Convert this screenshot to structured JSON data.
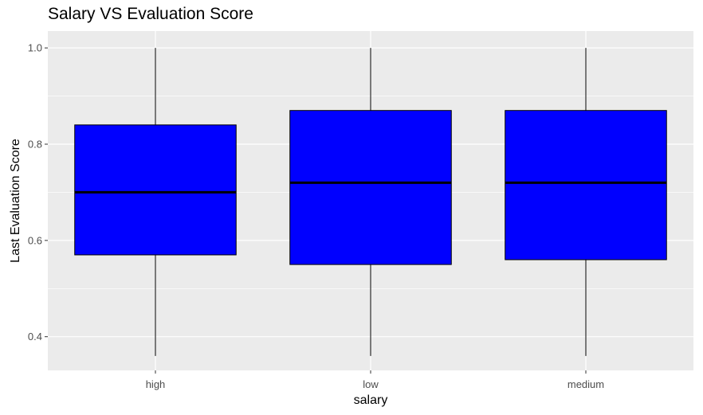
{
  "chart_data": {
    "type": "box",
    "title": "Salary VS Evaluation Score",
    "xlabel": "salary",
    "ylabel": "Last Evaluation Score",
    "categories": [
      "high",
      "low",
      "medium"
    ],
    "boxes": [
      {
        "category": "high",
        "min": 0.36,
        "q1": 0.57,
        "median": 0.7,
        "q3": 0.84,
        "max": 1.0
      },
      {
        "category": "low",
        "min": 0.36,
        "q1": 0.55,
        "median": 0.72,
        "q3": 0.87,
        "max": 1.0
      },
      {
        "category": "medium",
        "min": 0.36,
        "q1": 0.56,
        "median": 0.72,
        "q3": 0.87,
        "max": 1.0
      }
    ],
    "ylim": [
      0.33,
      1.035
    ],
    "yticks": [
      0.4,
      0.6,
      0.8,
      1.0
    ],
    "ytick_labels": [
      "0.4",
      "0.6",
      "0.8",
      "1.0"
    ],
    "grid": true,
    "legend": "none",
    "colors": {
      "box_fill": "#0000ff",
      "box_stroke": "#000000",
      "panel_background": "#ebebeb",
      "grid": "#ffffff"
    }
  }
}
